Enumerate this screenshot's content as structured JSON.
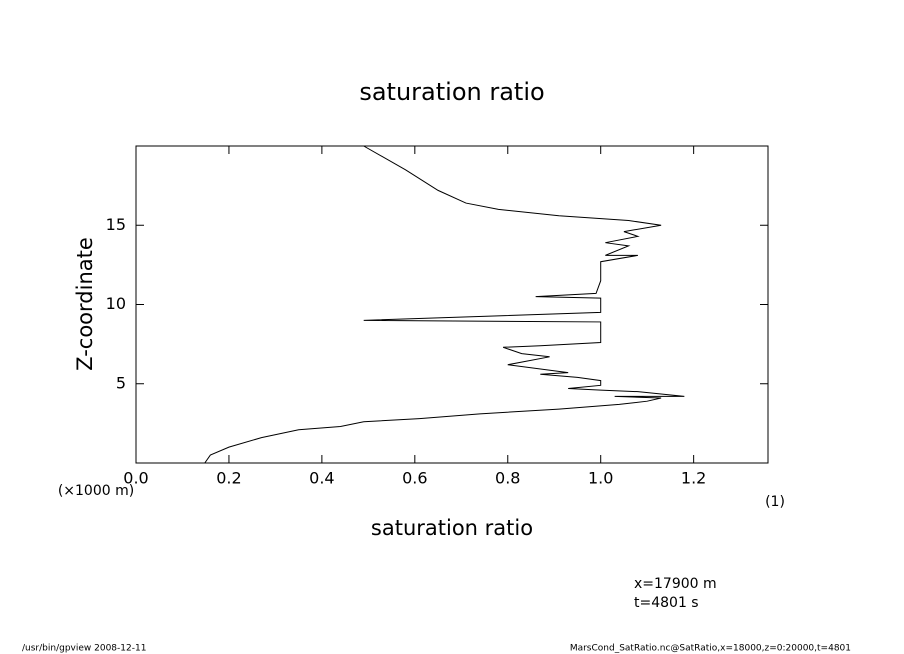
{
  "chart_data": {
    "type": "line",
    "title": "saturation ratio",
    "x_label": "saturation ratio",
    "y_label": "Z-coordinate",
    "y_unit": "(×1000 m)",
    "x_unit": "(1)",
    "annotations": [
      "x=17900 m",
      "t=4801 s"
    ],
    "footer_left": "/usr/bin/gpview   2008-12-11",
    "footer_right": "MarsCond_SatRatio.nc@SatRatio,x=18000,z=0:20000,t=4801",
    "x": [
      0.148,
      0.16,
      0.2,
      0.27,
      0.35,
      0.44,
      0.49,
      0.61,
      0.74,
      0.91,
      1.04,
      1.1,
      1.13,
      1.03,
      1.18,
      1.08,
      1.0,
      0.93,
      1.0,
      1.0,
      0.95,
      0.87,
      0.93,
      0.8,
      0.89,
      0.83,
      0.79,
      0.87,
      1.0,
      1.0,
      0.49,
      1.0,
      1.0,
      0.86,
      0.99,
      1.0,
      1.0,
      1.08,
      1.01,
      1.06,
      1.01,
      1.08,
      1.05,
      1.13,
      1.06,
      0.91,
      0.78,
      0.71,
      0.65,
      0.58,
      0.49
    ],
    "series": [
      {
        "name": "saturation ratio",
        "color": "#000000",
        "values": [
          0,
          0.5,
          1.0,
          1.6,
          2.1,
          2.3,
          2.6,
          2.8,
          3.1,
          3.4,
          3.7,
          3.9,
          4.1,
          4.2,
          4.2,
          4.5,
          4.6,
          4.7,
          4.9,
          5.2,
          5.4,
          5.6,
          5.7,
          6.2,
          6.7,
          6.9,
          7.3,
          7.4,
          7.6,
          8.9,
          9.0,
          9.5,
          10.4,
          10.5,
          10.7,
          11.5,
          12.7,
          13.1,
          13.1,
          13.7,
          13.9,
          14.3,
          14.6,
          15.0,
          15.3,
          15.6,
          16.0,
          16.4,
          17.2,
          18.5,
          20.0
        ]
      }
    ],
    "xlim": [
      0,
      1.36
    ],
    "ylim": [
      0,
      20
    ],
    "xticks": [
      {
        "value": 0,
        "label": "0.0"
      },
      0.2,
      0.4,
      0.6,
      0.8,
      {
        "value": 1,
        "label": "1.0"
      },
      1.2
    ],
    "yticks": [
      5,
      10,
      15
    ]
  }
}
